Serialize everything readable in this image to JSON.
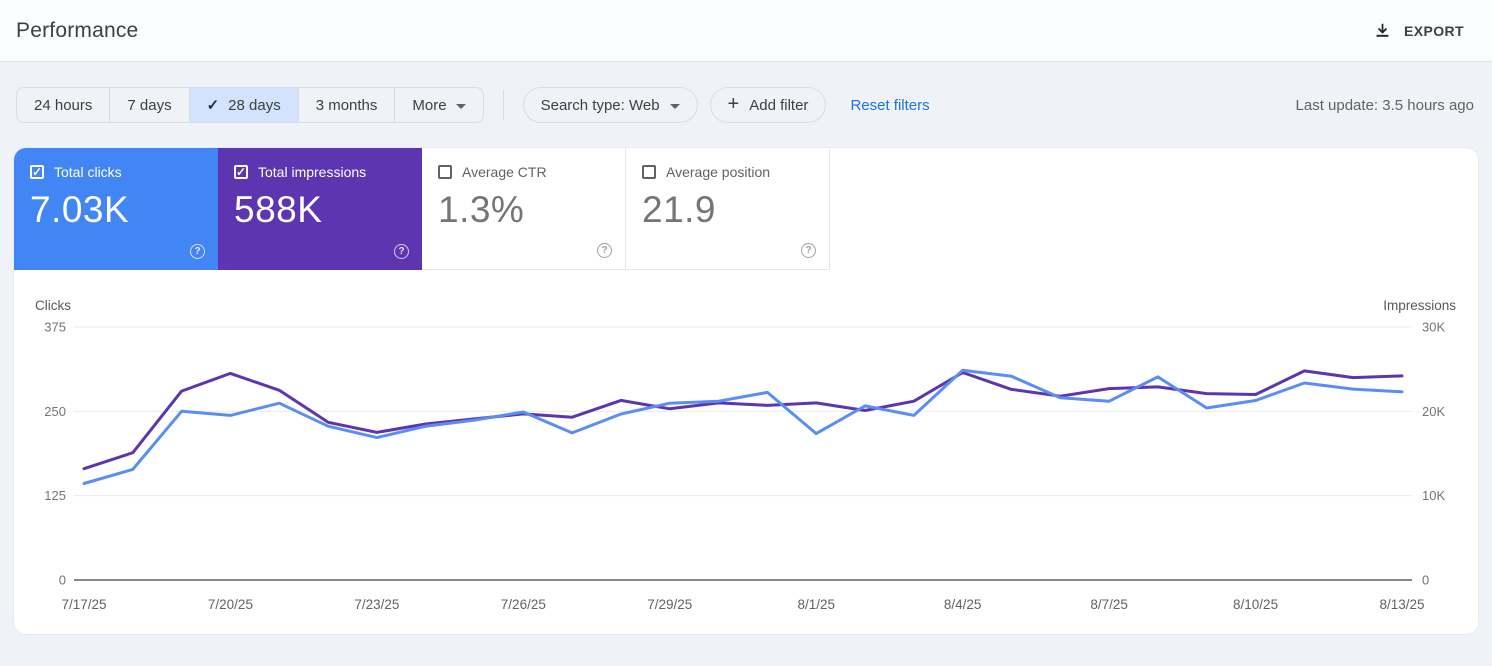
{
  "header": {
    "title": "Performance",
    "export_label": "EXPORT"
  },
  "filters": {
    "date_ranges": [
      {
        "label": "24 hours",
        "selected": false
      },
      {
        "label": "7 days",
        "selected": false
      },
      {
        "label": "28 days",
        "selected": true
      },
      {
        "label": "3 months",
        "selected": false
      },
      {
        "label": "More",
        "selected": false
      }
    ],
    "search_type": "Search type: Web",
    "add_filter": "Add filter",
    "reset": "Reset filters",
    "last_update": "Last update: 3.5 hours ago"
  },
  "cards": [
    {
      "label": "Total clicks",
      "value": "7.03K",
      "checked": true,
      "color": "#4285f4"
    },
    {
      "label": "Total impressions",
      "value": "588K",
      "checked": true,
      "color": "#5e35b1"
    },
    {
      "label": "Average CTR",
      "value": "1.3%",
      "checked": false,
      "color": ""
    },
    {
      "label": "Average position",
      "value": "21.9",
      "checked": false,
      "color": ""
    }
  ],
  "colors": {
    "clicks_line": "#5a8ef5",
    "impressions_line": "#5e35b1",
    "grid": "#e9ebee",
    "axis": "#85898e",
    "tick_text": "#757575",
    "date_text": "#5f6368",
    "axis_header_text": "#55595e"
  },
  "chart_data": {
    "type": "line",
    "x": [
      "7/17/25",
      "7/18/25",
      "7/19/25",
      "7/20/25",
      "7/21/25",
      "7/22/25",
      "7/23/25",
      "7/24/25",
      "7/25/25",
      "7/26/25",
      "7/27/25",
      "7/28/25",
      "7/29/25",
      "7/30/25",
      "7/31/25",
      "8/1/25",
      "8/2/25",
      "8/3/25",
      "8/4/25",
      "8/5/25",
      "8/6/25",
      "8/7/25",
      "8/8/25",
      "8/9/25",
      "8/10/25",
      "8/11/25",
      "8/12/25",
      "8/13/25"
    ],
    "x_tick_every": 3,
    "series": [
      {
        "name": "Clicks",
        "axis": "left",
        "values": [
          143,
          164,
          250,
          244,
          262,
          228,
          211,
          228,
          237,
          249,
          218,
          246,
          262,
          265,
          278,
          217,
          258,
          244,
          311,
          302,
          270,
          265,
          301,
          255,
          266,
          292,
          283,
          279
        ]
      },
      {
        "name": "Impressions",
        "axis": "right",
        "values": [
          13200,
          15100,
          22400,
          24500,
          22500,
          18700,
          17500,
          18500,
          19100,
          19700,
          19300,
          21300,
          20300,
          21000,
          20700,
          21000,
          20100,
          21200,
          24600,
          22600,
          21800,
          22700,
          22900,
          22100,
          22000,
          24800,
          24000,
          24200
        ]
      }
    ],
    "left_axis": {
      "label": "Clicks",
      "ticks": [
        0,
        125,
        250,
        375
      ],
      "max": 375
    },
    "right_axis": {
      "label": "Impressions",
      "ticks": [
        "0",
        "10K",
        "20K",
        "30K"
      ],
      "max": 30000
    },
    "grid": "horizontal",
    "legend_position": "none",
    "totals": {
      "clicks": "7.03K",
      "impressions": "588K",
      "avg_ctr": "1.3%",
      "avg_position": "21.9"
    }
  }
}
